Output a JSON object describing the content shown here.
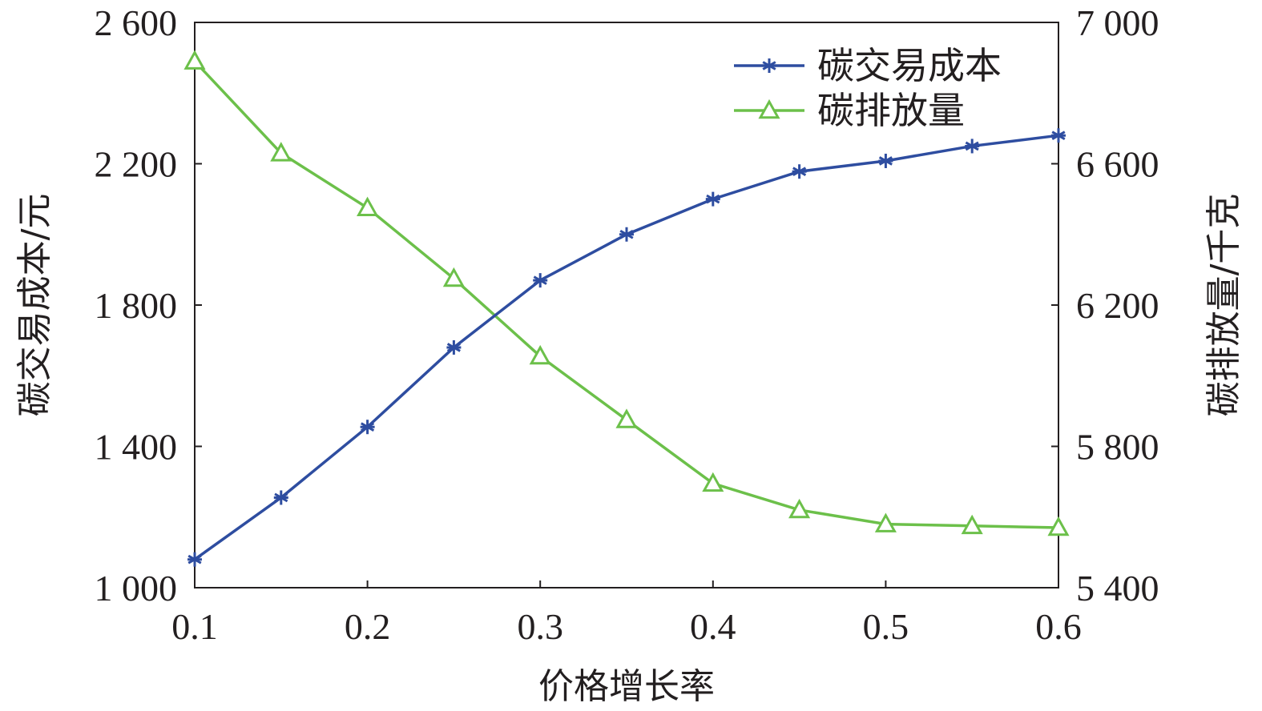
{
  "chart_data": {
    "type": "line",
    "xlabel": "价格增长率",
    "ylabel_left": "碳交易成本/元",
    "ylabel_right": "碳排放量/千克",
    "xlim": [
      0.1,
      0.6
    ],
    "ylim_left": [
      1000,
      2600
    ],
    "ylim_right": [
      5400,
      7000
    ],
    "x": [
      0.1,
      0.15,
      0.2,
      0.25,
      0.3,
      0.35,
      0.4,
      0.45,
      0.5,
      0.55,
      0.6
    ],
    "x_ticks": [
      0.1,
      0.2,
      0.3,
      0.4,
      0.5,
      0.6
    ],
    "x_tick_labels": [
      "0.1",
      "0.2",
      "0.3",
      "0.4",
      "0.5",
      "0.6"
    ],
    "y_left_ticks": [
      1000,
      1400,
      1800,
      2200,
      2600
    ],
    "y_left_tick_labels": [
      "1 000",
      "1 400",
      "1 800",
      "2 200",
      "2 600"
    ],
    "y_right_ticks": [
      5400,
      5800,
      6200,
      6600,
      7000
    ],
    "y_right_tick_labels": [
      "5 400",
      "5 800",
      "6 200",
      "6 600",
      "7 000"
    ],
    "grid": false,
    "legend_position": "top-right",
    "series": [
      {
        "name": "碳交易成本",
        "axis": "left",
        "marker": "asterisk",
        "color": "#2e4da0",
        "values": [
          1080,
          1255,
          1455,
          1680,
          1870,
          2000,
          2100,
          2178,
          2208,
          2250,
          2280
        ]
      },
      {
        "name": "碳排放量",
        "axis": "right",
        "marker": "triangle",
        "color": "#6cc04a",
        "values": [
          6890,
          6630,
          6475,
          6275,
          6055,
          5875,
          5695,
          5620,
          5580,
          5575,
          5570
        ]
      }
    ]
  }
}
